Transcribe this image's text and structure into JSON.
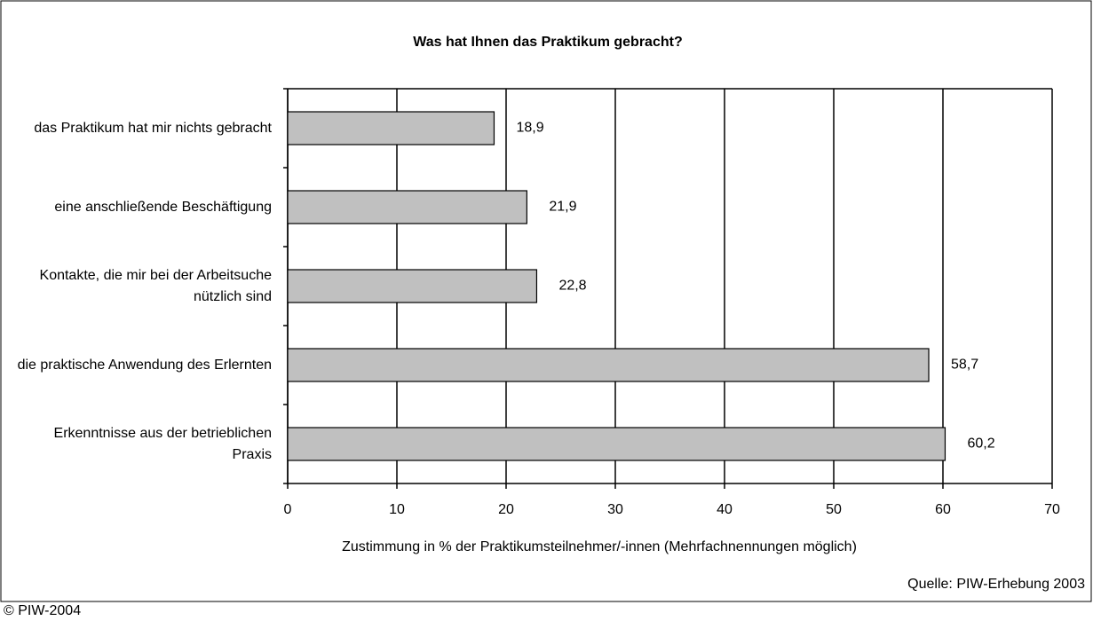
{
  "chart_data": {
    "type": "bar",
    "orientation": "horizontal",
    "title": "Was hat Ihnen das Praktikum gebracht?",
    "categories": [
      "das Praktikum hat mir nichts gebracht",
      "eine anschließende Beschäftigung",
      "Kontakte, die mir bei der Arbeitsuche nützlich sind",
      "die praktische Anwendung des Erlernten",
      "Erkenntnisse aus der betrieblichen Praxis"
    ],
    "values": [
      18.9,
      21.9,
      22.8,
      58.7,
      60.2
    ],
    "value_labels": [
      "18,9",
      "21,9",
      "22,8",
      "58,7",
      "60,2"
    ],
    "color": "#c0c0c0",
    "xlim": [
      0,
      70
    ],
    "xticks": [
      0,
      10,
      20,
      30,
      40,
      50,
      60,
      70
    ],
    "grid": true,
    "xlabel": "Zustimmung in % der Praktikumsteilnehmer/-innen (Mehrfachnennungen möglich)",
    "source": "Quelle: PIW-Erhebung 2003",
    "copyright": "© PIW-2004"
  }
}
